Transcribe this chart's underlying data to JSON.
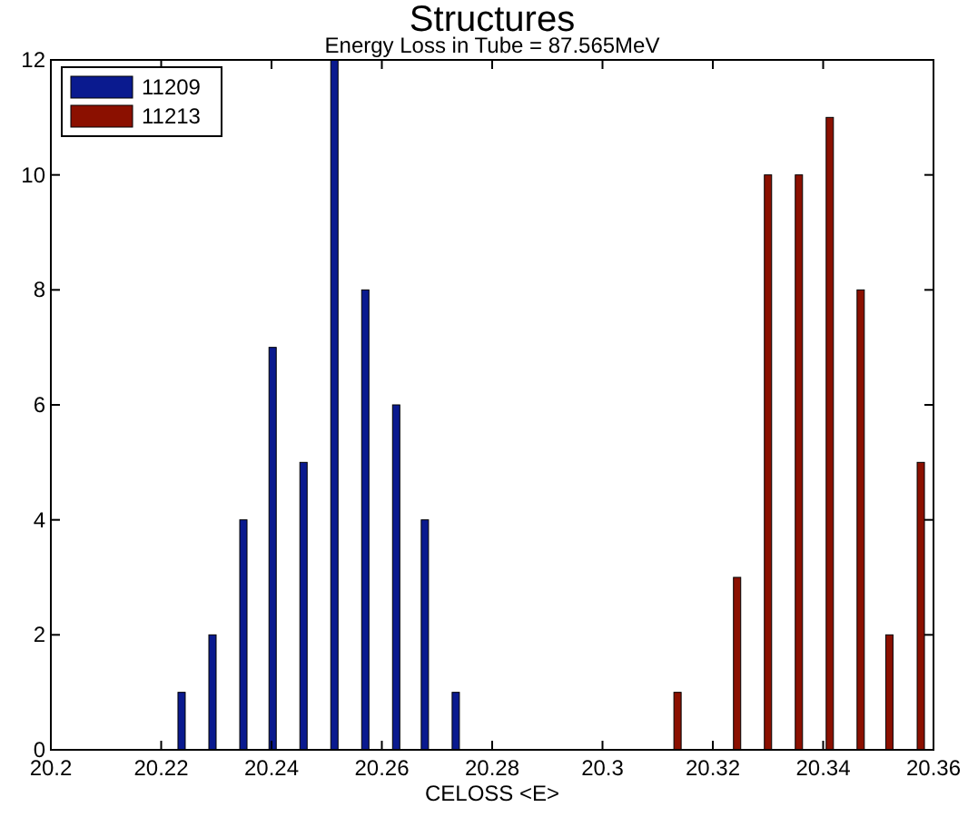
{
  "chart_data": {
    "type": "bar",
    "title": "Structures",
    "subtitle": "Energy Loss in Tube = 87.565MeV",
    "xlabel": "CELOSS <E>",
    "xlim": [
      20.2,
      20.36
    ],
    "xticks": [
      20.2,
      20.22,
      20.24,
      20.26,
      20.28,
      20.3,
      20.32,
      20.34,
      20.36
    ],
    "ylim": [
      0,
      12
    ],
    "yticks": [
      0,
      2,
      4,
      6,
      8,
      10,
      12
    ],
    "legend": "top left",
    "series": [
      {
        "name": "11209",
        "color": "#0a1a8f",
        "x": [
          20.2237,
          20.2293,
          20.2349,
          20.2402,
          20.2458,
          20.2514,
          20.257,
          20.2626,
          20.2678,
          20.2734
        ],
        "values": [
          1,
          2,
          4,
          7,
          5,
          12,
          8,
          6,
          4,
          1
        ]
      },
      {
        "name": "11213",
        "color": "#8b1000",
        "x": [
          20.3136,
          20.3244,
          20.33,
          20.3356,
          20.3412,
          20.3468,
          20.352,
          20.3577
        ],
        "values": [
          1,
          3,
          10,
          10,
          11,
          8,
          2,
          5
        ]
      }
    ]
  }
}
